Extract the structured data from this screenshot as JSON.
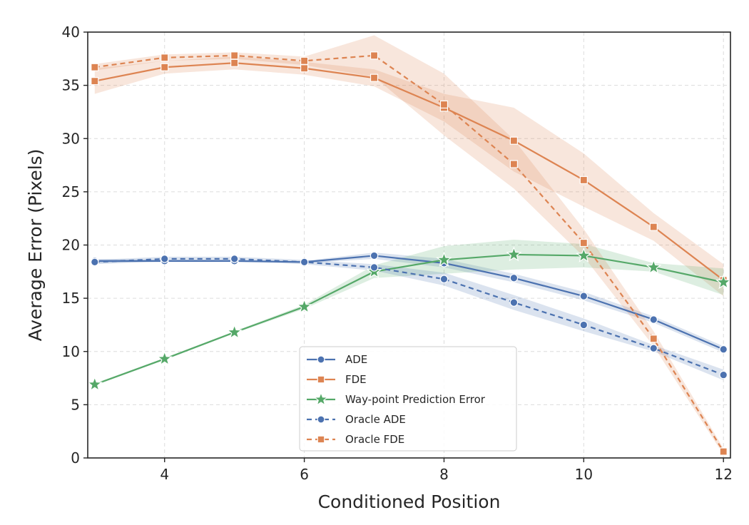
{
  "chart_data": {
    "type": "line",
    "title": "",
    "xlabel": "Conditioned Position",
    "ylabel": "Average Error (Pixels)",
    "xlim": [
      2.9,
      12.1
    ],
    "ylim": [
      0,
      40
    ],
    "xticks": [
      4,
      6,
      8,
      10,
      12
    ],
    "yticks": [
      0,
      5,
      10,
      15,
      20,
      25,
      30,
      35,
      40
    ],
    "grid": true,
    "legend_position": "bottom-center",
    "x": [
      3,
      4,
      5,
      6,
      7,
      8,
      9,
      10,
      11,
      12
    ],
    "series": [
      {
        "name": "ADE",
        "color": "#4C72B0",
        "dashed": false,
        "marker": "circle",
        "values": [
          18.5,
          18.5,
          18.5,
          18.4,
          19.0,
          18.3,
          16.9,
          15.2,
          13.0,
          10.2
        ],
        "band": [
          [
            18.3,
            18.7
          ],
          [
            18.4,
            18.6
          ],
          [
            18.4,
            18.6
          ],
          [
            18.3,
            18.5
          ],
          [
            18.7,
            19.3
          ],
          [
            17.9,
            18.7
          ],
          [
            16.5,
            17.3
          ],
          [
            14.8,
            15.6
          ],
          [
            12.7,
            13.3
          ],
          [
            9.9,
            10.5
          ]
        ]
      },
      {
        "name": "FDE",
        "color": "#DD8452",
        "dashed": false,
        "marker": "square",
        "values": [
          35.4,
          36.7,
          37.1,
          36.6,
          35.7,
          32.9,
          29.8,
          26.1,
          21.7,
          16.7
        ],
        "band": [
          [
            34.2,
            36.6
          ],
          [
            36.1,
            37.3
          ],
          [
            36.5,
            37.7
          ],
          [
            36.0,
            37.2
          ],
          [
            34.9,
            36.5
          ],
          [
            31.6,
            34.2
          ],
          [
            26.9,
            32.9
          ],
          [
            23.6,
            28.6
          ],
          [
            20.4,
            23.0
          ],
          [
            15.2,
            18.2
          ]
        ]
      },
      {
        "name": "Way-point Prediction Error",
        "color": "#55A868",
        "dashed": false,
        "marker": "star",
        "values": [
          6.9,
          9.3,
          11.8,
          14.2,
          17.5,
          18.6,
          19.1,
          19.0,
          17.9,
          16.5
        ],
        "band": [
          [
            6.8,
            7.0
          ],
          [
            9.2,
            9.4
          ],
          [
            11.7,
            11.9
          ],
          [
            14.0,
            14.4
          ],
          [
            16.9,
            18.1
          ],
          [
            17.3,
            19.9
          ],
          [
            17.7,
            20.5
          ],
          [
            17.9,
            20.1
          ],
          [
            17.5,
            18.3
          ],
          [
            15.3,
            17.8
          ]
        ]
      },
      {
        "name": "Oracle ADE",
        "color": "#4C72B0",
        "dashed": true,
        "marker": "circle",
        "values": [
          18.4,
          18.7,
          18.7,
          18.4,
          17.9,
          16.8,
          14.6,
          12.5,
          10.3,
          7.8
        ],
        "band": [
          [
            18.2,
            18.6
          ],
          [
            18.5,
            18.9
          ],
          [
            18.5,
            18.9
          ],
          [
            18.2,
            18.6
          ],
          [
            17.6,
            18.2
          ],
          [
            16.2,
            17.4
          ],
          [
            13.9,
            15.3
          ],
          [
            11.9,
            13.1
          ],
          [
            10.0,
            10.6
          ],
          [
            7.3,
            8.3
          ]
        ]
      },
      {
        "name": "Oracle FDE",
        "color": "#DD8452",
        "dashed": true,
        "marker": "square",
        "values": [
          36.7,
          37.6,
          37.8,
          37.3,
          37.8,
          33.2,
          27.6,
          20.2,
          11.2,
          0.6
        ],
        "band": [
          [
            36.4,
            37.0
          ],
          [
            37.3,
            37.9
          ],
          [
            37.5,
            38.1
          ],
          [
            36.9,
            37.7
          ],
          [
            35.8,
            39.7
          ],
          [
            30.3,
            36.1
          ],
          [
            25.3,
            29.9
          ],
          [
            18.9,
            21.5
          ],
          [
            10.5,
            11.9
          ],
          [
            0.3,
            0.9
          ]
        ]
      }
    ]
  }
}
